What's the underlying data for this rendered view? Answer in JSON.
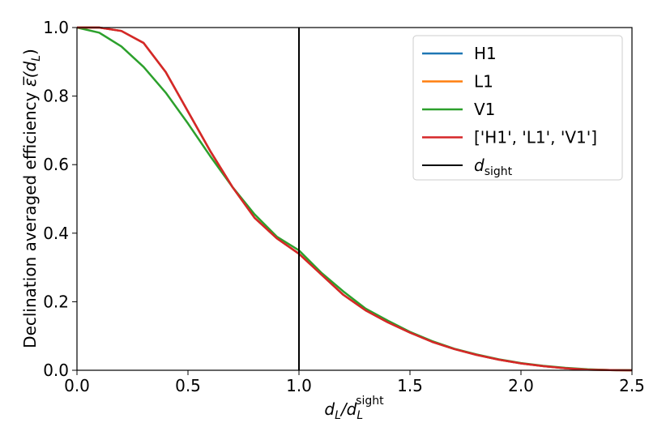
{
  "chart_data": {
    "type": "line",
    "xlabel": {
      "main": "d",
      "sub1": "L",
      "slash": "/d",
      "sub2": "L",
      "sup2": "sight"
    },
    "ylabel": {
      "main": "Declination averaged efficiency ",
      "sym": "ε̅",
      "open": "(d",
      "sub": "L",
      "close": ")"
    },
    "xlim": [
      0.0,
      2.5
    ],
    "ylim": [
      0.0,
      1.0
    ],
    "xticks": [
      "0.0",
      "0.5",
      "1.0",
      "1.5",
      "2.0",
      "2.5"
    ],
    "yticks": [
      "0.0",
      "0.2",
      "0.4",
      "0.6",
      "0.8",
      "1.0"
    ],
    "grid": false,
    "legend_position": "top-right",
    "series": [
      {
        "name": "H1",
        "color": "#1f77b4",
        "x": [
          0.0,
          0.1,
          0.2,
          0.3,
          0.4,
          0.5,
          0.6,
          0.7,
          0.8,
          0.9,
          1.0,
          1.1,
          1.2,
          1.3,
          1.4,
          1.5,
          1.6,
          1.7,
          1.8,
          1.9,
          2.0,
          2.1,
          2.2,
          2.3,
          2.4,
          2.5
        ],
        "y": [
          1.0,
          1.0,
          0.99,
          0.955,
          0.87,
          0.755,
          0.64,
          0.535,
          0.445,
          0.385,
          0.34,
          0.28,
          0.22,
          0.175,
          0.14,
          0.11,
          0.083,
          0.062,
          0.045,
          0.031,
          0.02,
          0.012,
          0.006,
          0.002,
          0.0005,
          0.0
        ]
      },
      {
        "name": "L1",
        "color": "#ff7f0e",
        "x": [
          0.0,
          0.1,
          0.2,
          0.3,
          0.4,
          0.5,
          0.6,
          0.7,
          0.8,
          0.9,
          1.0,
          1.1,
          1.2,
          1.3,
          1.4,
          1.5,
          1.6,
          1.7,
          1.8,
          1.9,
          2.0,
          2.1,
          2.2,
          2.3,
          2.4,
          2.5
        ],
        "y": [
          1.0,
          1.0,
          0.99,
          0.955,
          0.87,
          0.755,
          0.64,
          0.535,
          0.445,
          0.385,
          0.34,
          0.28,
          0.22,
          0.175,
          0.14,
          0.11,
          0.083,
          0.062,
          0.045,
          0.031,
          0.02,
          0.012,
          0.006,
          0.002,
          0.0005,
          0.0
        ]
      },
      {
        "name": "V1",
        "color": "#2ca02c",
        "x": [
          0.0,
          0.1,
          0.2,
          0.3,
          0.4,
          0.5,
          0.6,
          0.7,
          0.8,
          0.9,
          1.0,
          1.1,
          1.2,
          1.3,
          1.4,
          1.5,
          1.6,
          1.7,
          1.8,
          1.9,
          2.0,
          2.1,
          2.2,
          2.3,
          2.4,
          2.5
        ],
        "y": [
          1.0,
          0.985,
          0.945,
          0.885,
          0.81,
          0.72,
          0.625,
          0.535,
          0.455,
          0.39,
          0.35,
          0.285,
          0.23,
          0.18,
          0.145,
          0.112,
          0.085,
          0.063,
          0.046,
          0.032,
          0.021,
          0.013,
          0.007,
          0.003,
          0.0008,
          0.0
        ]
      },
      {
        "name": "['H1', 'L1', 'V1']",
        "color": "#d62728",
        "x": [
          0.0,
          0.1,
          0.2,
          0.3,
          0.4,
          0.5,
          0.6,
          0.7,
          0.8,
          0.9,
          1.0,
          1.1,
          1.2,
          1.3,
          1.4,
          1.5,
          1.6,
          1.7,
          1.8,
          1.9,
          2.0,
          2.1,
          2.2,
          2.3,
          2.4,
          2.5
        ],
        "y": [
          1.0,
          1.0,
          0.99,
          0.955,
          0.87,
          0.755,
          0.64,
          0.535,
          0.445,
          0.385,
          0.34,
          0.28,
          0.22,
          0.175,
          0.14,
          0.11,
          0.083,
          0.062,
          0.045,
          0.031,
          0.02,
          0.012,
          0.006,
          0.002,
          0.0005,
          0.0
        ]
      }
    ],
    "vline": {
      "x": 1.0,
      "color": "#000000",
      "label": {
        "main": "d",
        "sub": "sight"
      }
    }
  }
}
